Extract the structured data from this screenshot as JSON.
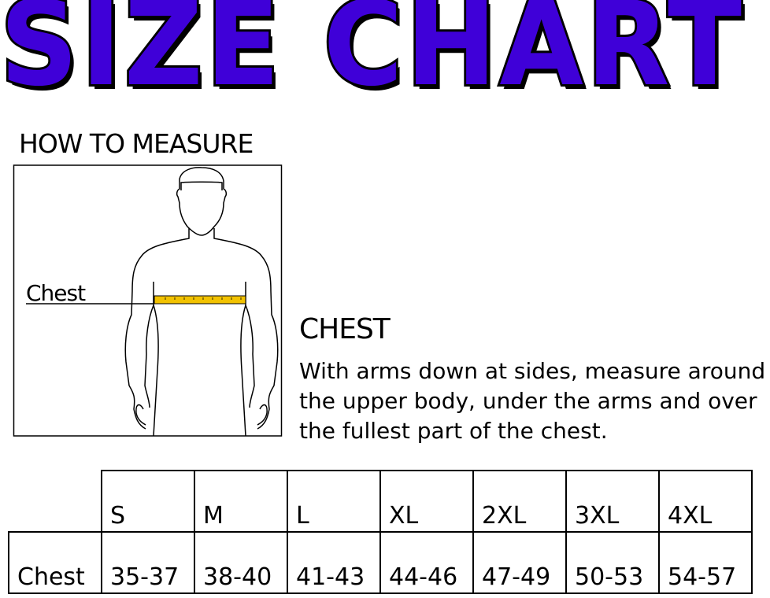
{
  "title": "SIZE CHART",
  "how_to_measure": {
    "heading": "HOW TO MEASURE",
    "figure_label": "Chest",
    "tape_color": "#f2c200"
  },
  "instructions": {
    "heading": "CHEST",
    "text": "With arms down at sides, measure around the upper body, under the arms and over the fullest part of the chest."
  },
  "size_table": {
    "sizes": [
      "S",
      "M",
      "L",
      "XL",
      "2XL",
      "3XL",
      "4XL"
    ],
    "rows": [
      {
        "label": "Chest",
        "values": [
          "35-37",
          "38-40",
          "41-43",
          "44-46",
          "47-49",
          "50-53",
          "54-57"
        ]
      }
    ]
  },
  "colors": {
    "title_fill": "#3f00d8",
    "title_outline": "#000000"
  }
}
